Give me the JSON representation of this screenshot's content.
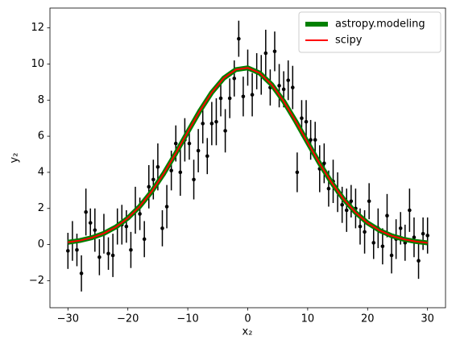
{
  "chart_data": {
    "type": "scatter",
    "xlabel": "x₂",
    "ylabel": "y₂",
    "xlim": [
      -33,
      33
    ],
    "ylim": [
      -3.5,
      13.1
    ],
    "xticks": [
      {
        "value": -30,
        "label": "−30"
      },
      {
        "value": -20,
        "label": "−20"
      },
      {
        "value": -10,
        "label": "−10"
      },
      0,
      10,
      20,
      30
    ],
    "yticks": [
      {
        "value": -2,
        "label": "−2"
      },
      0,
      2,
      4,
      6,
      8,
      10,
      12
    ],
    "grid": false,
    "legend": "upper right",
    "series": [
      {
        "type": "errorbar",
        "color": "#000000",
        "x": [
          -30,
          -29.25,
          -28.5,
          -27.75,
          -27,
          -26.25,
          -25.5,
          -24.75,
          -24,
          -23.25,
          -22.5,
          -21.75,
          -21,
          -20.25,
          -19.5,
          -18.75,
          -18,
          -17.25,
          -16.5,
          -15.75,
          -15,
          -14.25,
          -13.5,
          -12.75,
          -12,
          -11.25,
          -10.5,
          -9.75,
          -9,
          -8.25,
          -7.5,
          -6.75,
          -6,
          -5.25,
          -4.5,
          -3.75,
          -3,
          -2.25,
          -1.5,
          -0.75,
          0,
          0.75,
          1.5,
          2.25,
          3,
          3.75,
          4.5,
          5.25,
          6,
          6.75,
          7.5,
          8.25,
          9,
          9.75,
          10.5,
          11.25,
          12,
          12.75,
          13.5,
          14.25,
          15,
          15.75,
          16.5,
          17.25,
          18,
          18.75,
          19.5,
          20.25,
          21,
          21.75,
          22.5,
          23.25,
          24,
          24.75,
          25.5,
          26.25,
          27,
          27.75,
          28.5,
          29.25,
          30
        ],
        "values": [
          -0.35,
          0.2,
          -0.3,
          -1.6,
          1.8,
          1.2,
          0.8,
          -0.7,
          0.6,
          -0.5,
          -0.6,
          1.0,
          1.1,
          1.0,
          -0.3,
          1.9,
          1.7,
          0.3,
          3.2,
          3.6,
          4.3,
          0.9,
          2.1,
          4.1,
          5.6,
          4.0,
          5.8,
          5.6,
          3.6,
          5.2,
          6.7,
          4.9,
          6.7,
          6.8,
          8.1,
          6.3,
          8.1,
          9.2,
          11.4,
          8.2,
          9.8,
          8.3,
          9.6,
          9.4,
          10.6,
          8.7,
          10.7,
          8.8,
          8.6,
          9.1,
          8.7,
          4.0,
          7.0,
          6.8,
          5.8,
          5.8,
          4.2,
          4.5,
          3.1,
          3.5,
          2.9,
          2.2,
          1.9,
          2.4,
          2.0,
          1.0,
          0.7,
          2.4,
          0.1,
          0.9,
          -0.1,
          1.6,
          -0.6,
          0.3,
          0.9,
          0.1,
          1.9,
          0.4,
          -0.9,
          0.6,
          0.5
        ],
        "errors": [
          1.0,
          1.1,
          0.9,
          1.0,
          1.3,
          0.8,
          1.2,
          1.0,
          1.1,
          0.9,
          1.2,
          1.0,
          1.1,
          0.9,
          1.0,
          1.3,
          0.9,
          1.0,
          1.2,
          1.1,
          1.3,
          1.0,
          1.2,
          1.1,
          1.0,
          1.3,
          1.2,
          0.9,
          1.1,
          1.2,
          1.1,
          1.0,
          1.2,
          1.3,
          1.0,
          1.2,
          1.1,
          1.0,
          1.0,
          1.1,
          1.0,
          1.2,
          1.0,
          1.1,
          1.3,
          1.0,
          1.1,
          1.2,
          1.0,
          1.1,
          1.2,
          1.1,
          1.0,
          1.2,
          1.1,
          1.0,
          1.3,
          1.1,
          1.0,
          1.2,
          1.1,
          1.0,
          1.2,
          0.9,
          1.1,
          1.0,
          1.2,
          1.0,
          0.9,
          1.1,
          1.0,
          1.2,
          1.0,
          1.1,
          0.9,
          1.0,
          1.2,
          1.1,
          1.0,
          0.9,
          1.0
        ]
      },
      {
        "type": "line",
        "name": "astropy.modeling",
        "color": "#008000",
        "linewidth": 6,
        "x": [
          -30,
          -28,
          -26,
          -24,
          -22,
          -20,
          -18,
          -16,
          -14,
          -12,
          -10,
          -8,
          -6,
          -4,
          -2,
          0,
          2,
          4,
          6,
          8,
          10,
          12,
          14,
          16,
          18,
          20,
          22,
          24,
          26,
          28,
          30
        ],
        "values": [
          0.126,
          0.223,
          0.38,
          0.619,
          0.972,
          1.464,
          2.12,
          2.949,
          3.94,
          5.059,
          6.242,
          7.397,
          8.425,
          9.218,
          9.69,
          9.788,
          9.499,
          8.858,
          7.936,
          6.83,
          5.648,
          4.487,
          3.428,
          2.513,
          1.77,
          1.198,
          0.78,
          0.487,
          0.293,
          0.169,
          0.094
        ]
      },
      {
        "type": "line",
        "name": "scipy",
        "color": "#ff0000",
        "linewidth": 2,
        "x": [
          -30,
          -28,
          -26,
          -24,
          -22,
          -20,
          -18,
          -16,
          -14,
          -12,
          -10,
          -8,
          -6,
          -4,
          -2,
          0,
          2,
          4,
          6,
          8,
          10,
          12,
          14,
          16,
          18,
          20,
          22,
          24,
          26,
          28,
          30
        ],
        "values": [
          0.126,
          0.223,
          0.38,
          0.619,
          0.972,
          1.464,
          2.12,
          2.949,
          3.94,
          5.059,
          6.242,
          7.397,
          8.425,
          9.218,
          9.69,
          9.788,
          9.499,
          8.858,
          7.936,
          6.83,
          5.648,
          4.487,
          3.428,
          2.513,
          1.77,
          1.198,
          0.78,
          0.487,
          0.293,
          0.169,
          0.094
        ]
      }
    ]
  }
}
